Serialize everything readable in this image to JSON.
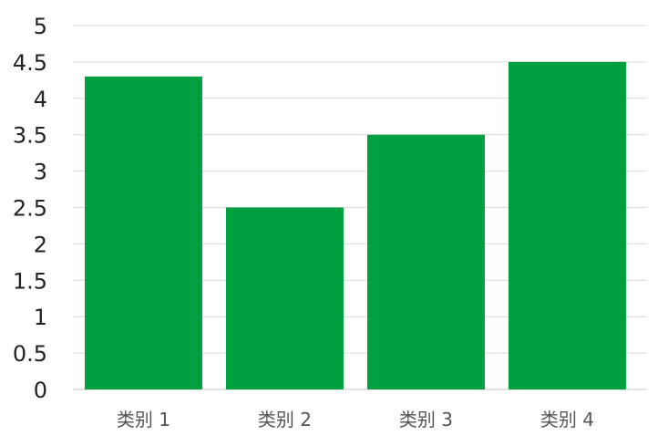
{
  "chart_data": {
    "type": "bar",
    "categories": [
      "类别 1",
      "类别 2",
      "类别 3",
      "类别 4"
    ],
    "values": [
      4.3,
      2.5,
      3.5,
      4.5
    ],
    "yticks": [
      "0",
      "0.5",
      "1",
      "1.5",
      "2",
      "2.5",
      "3",
      "3.5",
      "4",
      "4.5",
      "5"
    ],
    "ylim": [
      0,
      5
    ],
    "title": "",
    "xlabel": "",
    "ylabel": "",
    "grid": true,
    "legend": "none",
    "bar_color": "#00A040",
    "grid_color": "#D9D9D9"
  }
}
